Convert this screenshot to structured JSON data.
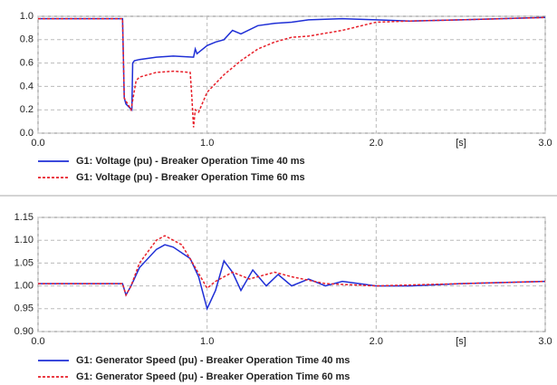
{
  "chart_data": [
    {
      "type": "line",
      "xlabel": "[s]",
      "xlim": [
        0,
        3
      ],
      "ylim": [
        0,
        1
      ],
      "xticks": [
        {
          "value": 0,
          "label": "0.0"
        },
        {
          "value": 1,
          "label": "1.0"
        },
        {
          "value": 2,
          "label": "2.0"
        },
        {
          "value": 3,
          "label": "3.0"
        }
      ],
      "yticks": [
        {
          "value": 0,
          "label": "0.0"
        },
        0.2,
        0.4,
        0.6,
        0.8,
        {
          "value": 1,
          "label": "1.0"
        }
      ],
      "grid": true,
      "legend": "bottom",
      "series": [
        {
          "name": "G1: Voltage (pu) -  Breaker Operation Time 40 ms",
          "color": "#1f2fd6",
          "dash": "solid",
          "x": [
            0,
            0.5,
            0.51,
            0.52,
            0.54,
            0.555,
            0.56,
            0.57,
            0.6,
            0.7,
            0.8,
            0.92,
            0.93,
            0.94,
            1.0,
            1.05,
            1.1,
            1.15,
            1.2,
            1.3,
            1.4,
            1.5,
            1.6,
            1.8,
            2.0,
            2.2,
            2.5,
            3.0
          ],
          "values": [
            0.98,
            0.98,
            0.3,
            0.25,
            0.22,
            0.2,
            0.6,
            0.62,
            0.63,
            0.65,
            0.66,
            0.65,
            0.72,
            0.68,
            0.75,
            0.78,
            0.8,
            0.88,
            0.85,
            0.92,
            0.94,
            0.95,
            0.97,
            0.98,
            0.97,
            0.96,
            0.97,
            0.99
          ]
        },
        {
          "name": "G1: Voltage (pu)  - Breaker Operation Time 60 ms",
          "color": "#e8202a",
          "dash": "dashed",
          "x": [
            0,
            0.5,
            0.51,
            0.55,
            0.58,
            0.6,
            0.7,
            0.8,
            0.9,
            0.91,
            0.92,
            0.93,
            0.95,
            1.0,
            1.1,
            1.2,
            1.3,
            1.4,
            1.5,
            1.6,
            1.8,
            2.0,
            2.2,
            2.5,
            3.0
          ],
          "values": [
            0.98,
            0.98,
            0.3,
            0.2,
            0.45,
            0.48,
            0.52,
            0.53,
            0.52,
            0.3,
            0.05,
            0.2,
            0.18,
            0.35,
            0.5,
            0.62,
            0.72,
            0.78,
            0.82,
            0.83,
            0.88,
            0.95,
            0.96,
            0.97,
            0.99
          ]
        }
      ]
    },
    {
      "type": "line",
      "xlabel": "[s]",
      "xlim": [
        0,
        3
      ],
      "ylim": [
        0.9,
        1.15
      ],
      "xticks": [
        {
          "value": 0,
          "label": "0.0"
        },
        {
          "value": 1,
          "label": "1.0"
        },
        {
          "value": 2,
          "label": "2.0"
        },
        {
          "value": 3,
          "label": "3.0"
        }
      ],
      "yticks": [
        {
          "value": 0.9,
          "label": "0.90"
        },
        0.95,
        {
          "value": 1,
          "label": "1.00"
        },
        1.05,
        {
          "value": 1.1,
          "label": "1.10"
        },
        1.15
      ],
      "grid": true,
      "legend": "bottom",
      "series": [
        {
          "name": "G1: Generator Speed (pu) - Breaker Operation Time 40 ms",
          "color": "#1f2fd6",
          "dash": "solid",
          "x": [
            0,
            0.5,
            0.52,
            0.55,
            0.6,
            0.7,
            0.75,
            0.8,
            0.9,
            0.95,
            1.0,
            1.05,
            1.1,
            1.15,
            1.2,
            1.27,
            1.35,
            1.42,
            1.5,
            1.6,
            1.7,
            1.8,
            2.0,
            2.2,
            2.5,
            3.0
          ],
          "values": [
            1.005,
            1.005,
            0.98,
            1.0,
            1.04,
            1.08,
            1.09,
            1.085,
            1.06,
            1.02,
            0.95,
            0.99,
            1.055,
            1.03,
            0.99,
            1.035,
            1.0,
            1.025,
            1.0,
            1.015,
            1.0,
            1.01,
            1.0,
            1.0,
            1.005,
            1.01
          ]
        },
        {
          "name": "G1: Generator Speed (pu) - Breaker Operation Time 60 ms",
          "color": "#e8202a",
          "dash": "dashed",
          "x": [
            0,
            0.5,
            0.52,
            0.55,
            0.6,
            0.7,
            0.75,
            0.85,
            0.93,
            1.0,
            1.05,
            1.15,
            1.25,
            1.4,
            1.5,
            1.7,
            2.0,
            2.5,
            3.0
          ],
          "values": [
            1.005,
            1.005,
            0.98,
            1.0,
            1.05,
            1.1,
            1.11,
            1.09,
            1.04,
            0.995,
            1.01,
            1.03,
            1.015,
            1.03,
            1.02,
            1.005,
            1.0,
            1.005,
            1.01
          ]
        }
      ]
    }
  ]
}
